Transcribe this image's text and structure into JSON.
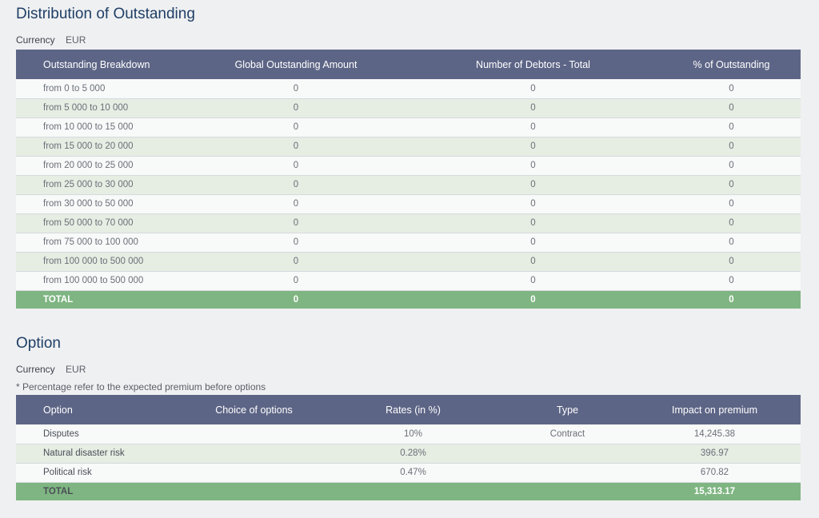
{
  "distribution": {
    "title": "Distribution of Outstanding",
    "currency_label": "Currency",
    "currency_value": "EUR",
    "columns": [
      "Outstanding Breakdown",
      "Global Outstanding Amount",
      "Number of Debtors - Total",
      "% of Outstanding"
    ],
    "rows": [
      [
        "from 0 to 5 000",
        "0",
        "0",
        "0"
      ],
      [
        "from 5 000 to 10 000",
        "0",
        "0",
        "0"
      ],
      [
        "from 10 000 to 15 000",
        "0",
        "0",
        "0"
      ],
      [
        "from 15 000 to 20 000",
        "0",
        "0",
        "0"
      ],
      [
        "from 20 000 to 25 000",
        "0",
        "0",
        "0"
      ],
      [
        "from 25 000 to 30 000",
        "0",
        "0",
        "0"
      ],
      [
        "from 30 000 to 50 000",
        "0",
        "0",
        "0"
      ],
      [
        "from 50 000 to 70 000",
        "0",
        "0",
        "0"
      ],
      [
        "from 75 000 to 100 000",
        "0",
        "0",
        "0"
      ],
      [
        "from 100 000 to 500 000",
        "0",
        "0",
        "0"
      ],
      [
        "from 100 000 to 500 000",
        "0",
        "0",
        "0"
      ]
    ],
    "total": [
      "TOTAL",
      "0",
      "0",
      "0"
    ]
  },
  "option": {
    "title": "Option",
    "currency_label": "Currency",
    "currency_value": "EUR",
    "note": "* Percentage refer to the expected premium before options",
    "columns": [
      "Option",
      "Choice of options",
      "Rates (in %)",
      "Type",
      "Impact on premium"
    ],
    "rows": [
      [
        "Disputes",
        "",
        "10%",
        "Contract",
        "14,245.38"
      ],
      [
        "Natural disaster risk",
        "",
        "0.28%",
        "",
        "396.97"
      ],
      [
        "Political risk",
        "",
        "0.47%",
        "",
        "670.82"
      ]
    ],
    "total": [
      "TOTAL",
      "",
      "",
      "",
      "15,313.17"
    ]
  },
  "colors": {
    "header_bg": "#5d6586",
    "total_bg": "#7fb582",
    "row_alt_bg": "#e6ede3",
    "title_color": "#1f3f66"
  }
}
